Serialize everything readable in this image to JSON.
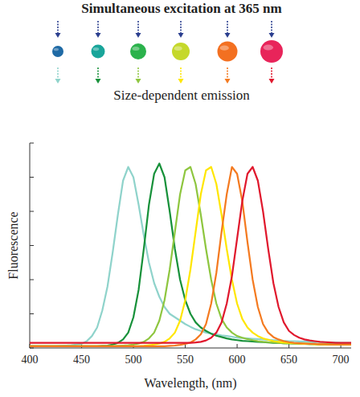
{
  "chart_data": {
    "type": "line",
    "title": "Simultaneous excitation at 365 nm",
    "subtitle": "Size-dependent emission",
    "x_label": "Wavelength, (nm)",
    "y_label": "Fluorescence",
    "xlim": [
      400,
      710
    ],
    "ylim": [
      0,
      6
    ],
    "xticks": [
      400,
      450,
      500,
      550,
      600,
      650,
      700
    ],
    "yticks": [
      0,
      1,
      2,
      3,
      4,
      5,
      6
    ],
    "tick_labels": "x",
    "grid": false,
    "x": [
      400,
      405,
      410,
      415,
      420,
      425,
      430,
      435,
      440,
      445,
      450,
      455,
      460,
      465,
      470,
      475,
      480,
      485,
      490,
      495,
      500,
      505,
      510,
      515,
      520,
      525,
      530,
      535,
      540,
      545,
      550,
      555,
      560,
      565,
      570,
      575,
      580,
      585,
      590,
      595,
      600,
      605,
      610,
      615,
      620,
      625,
      630,
      635,
      640,
      645,
      650,
      655,
      660,
      665,
      670,
      675,
      680,
      685,
      690,
      695,
      700,
      705,
      710
    ],
    "series": [
      {
        "color": "#8fd3cb",
        "values": [
          0.05,
          0.05,
          0.05,
          0.05,
          0.05,
          0.05,
          0.06,
          0.07,
          0.08,
          0.1,
          0.12,
          0.2,
          0.35,
          0.6,
          1.1,
          1.8,
          2.8,
          3.9,
          4.9,
          5.3,
          5.0,
          4.2,
          3.3,
          2.5,
          1.9,
          1.5,
          1.2,
          1.0,
          0.9,
          0.8,
          0.7,
          0.62,
          0.55,
          0.5,
          0.45,
          0.42,
          0.4,
          0.37,
          0.35,
          0.33,
          0.3,
          0.29,
          0.28,
          0.27,
          0.26,
          0.25,
          0.24,
          0.23,
          0.22,
          0.21,
          0.2,
          0.2,
          0.19,
          0.19,
          0.18,
          0.18,
          0.17,
          0.17,
          0.16,
          0.16,
          0.15,
          0.15,
          0.15
        ]
      },
      {
        "color": "#17913a",
        "values": [
          0.05,
          0.05,
          0.05,
          0.05,
          0.05,
          0.05,
          0.05,
          0.05,
          0.05,
          0.05,
          0.05,
          0.05,
          0.05,
          0.05,
          0.06,
          0.07,
          0.1,
          0.15,
          0.25,
          0.45,
          0.9,
          1.7,
          2.9,
          4.2,
          5.1,
          5.4,
          5.0,
          4.0,
          2.9,
          2.0,
          1.4,
          1.0,
          0.75,
          0.6,
          0.5,
          0.42,
          0.36,
          0.32,
          0.28,
          0.25,
          0.23,
          0.21,
          0.2,
          0.19,
          0.18,
          0.17,
          0.16,
          0.15,
          0.15,
          0.14,
          0.14,
          0.13,
          0.13,
          0.12,
          0.12,
          0.12,
          0.11,
          0.11,
          0.11,
          0.1,
          0.1,
          0.1,
          0.1
        ]
      },
      {
        "color": "#8ec63f",
        "values": [
          0.05,
          0.05,
          0.05,
          0.05,
          0.05,
          0.05,
          0.05,
          0.05,
          0.05,
          0.05,
          0.05,
          0.05,
          0.05,
          0.05,
          0.05,
          0.05,
          0.05,
          0.06,
          0.07,
          0.08,
          0.1,
          0.13,
          0.18,
          0.28,
          0.45,
          0.8,
          1.4,
          2.3,
          3.4,
          4.5,
          5.2,
          5.3,
          4.8,
          3.9,
          2.9,
          2.0,
          1.3,
          0.85,
          0.6,
          0.45,
          0.35,
          0.3,
          0.26,
          0.23,
          0.2,
          0.18,
          0.17,
          0.16,
          0.15,
          0.14,
          0.13,
          0.13,
          0.12,
          0.12,
          0.11,
          0.11,
          0.1,
          0.1,
          0.1,
          0.1,
          0.1,
          0.1,
          0.1
        ]
      },
      {
        "color": "#ffe600",
        "values": [
          0.05,
          0.05,
          0.05,
          0.05,
          0.05,
          0.05,
          0.05,
          0.05,
          0.05,
          0.05,
          0.05,
          0.05,
          0.05,
          0.05,
          0.05,
          0.05,
          0.05,
          0.05,
          0.05,
          0.05,
          0.05,
          0.05,
          0.06,
          0.08,
          0.1,
          0.13,
          0.18,
          0.28,
          0.45,
          0.8,
          1.4,
          2.3,
          3.4,
          4.5,
          5.2,
          5.3,
          4.8,
          3.9,
          2.9,
          2.0,
          1.3,
          0.85,
          0.6,
          0.45,
          0.35,
          0.28,
          0.24,
          0.2,
          0.18,
          0.16,
          0.15,
          0.14,
          0.13,
          0.12,
          0.12,
          0.11,
          0.11,
          0.1,
          0.1,
          0.1,
          0.1,
          0.1,
          0.1
        ]
      },
      {
        "color": "#f47a20",
        "values": [
          0.05,
          0.05,
          0.05,
          0.05,
          0.05,
          0.05,
          0.05,
          0.05,
          0.05,
          0.05,
          0.05,
          0.05,
          0.05,
          0.05,
          0.05,
          0.05,
          0.05,
          0.05,
          0.05,
          0.05,
          0.05,
          0.05,
          0.05,
          0.05,
          0.05,
          0.05,
          0.05,
          0.06,
          0.07,
          0.09,
          0.12,
          0.16,
          0.25,
          0.4,
          0.7,
          1.3,
          2.2,
          3.4,
          4.5,
          5.3,
          5.1,
          4.3,
          3.1,
          2.0,
          1.2,
          0.7,
          0.45,
          0.32,
          0.25,
          0.2,
          0.17,
          0.15,
          0.14,
          0.13,
          0.12,
          0.12,
          0.11,
          0.11,
          0.1,
          0.1,
          0.1,
          0.1,
          0.1
        ]
      },
      {
        "color": "#e0182d",
        "values": [
          0.15,
          0.15,
          0.15,
          0.15,
          0.15,
          0.15,
          0.15,
          0.15,
          0.15,
          0.15,
          0.15,
          0.15,
          0.15,
          0.15,
          0.15,
          0.15,
          0.15,
          0.15,
          0.15,
          0.15,
          0.15,
          0.15,
          0.15,
          0.15,
          0.15,
          0.15,
          0.15,
          0.15,
          0.15,
          0.15,
          0.15,
          0.15,
          0.16,
          0.18,
          0.22,
          0.3,
          0.45,
          0.75,
          1.3,
          2.1,
          3.2,
          4.3,
          5.1,
          5.3,
          4.9,
          4.0,
          2.9,
          1.9,
          1.2,
          0.75,
          0.5,
          0.38,
          0.3,
          0.25,
          0.22,
          0.2,
          0.18,
          0.17,
          0.16,
          0.15,
          0.15,
          0.15,
          0.15
        ]
      }
    ]
  }
}
